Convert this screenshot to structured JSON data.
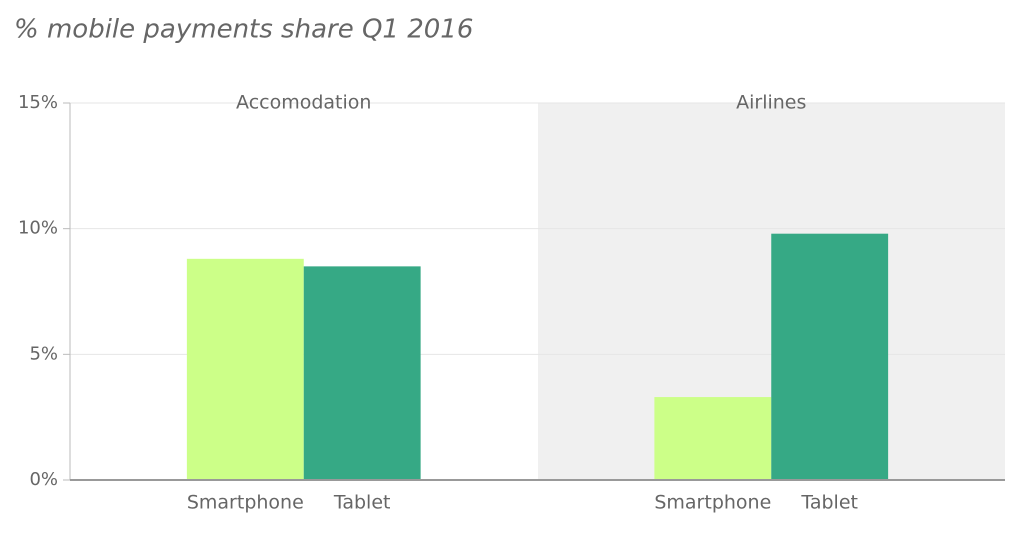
{
  "title": "% mobile payments share Q1 2016",
  "chart_data": [
    {
      "type": "bar",
      "title": "Accomodation",
      "categories": [
        "Smartphone",
        "Tablet"
      ],
      "values": [
        8.8,
        8.5
      ],
      "colors": [
        "#ccff88",
        "#36a985"
      ],
      "ylim": [
        0,
        15
      ],
      "yticks": [
        {
          "value": 0,
          "label": "0%"
        },
        {
          "value": 5,
          "label": "5%"
        },
        {
          "value": 10,
          "label": "10%"
        },
        {
          "value": 15,
          "label": "15%"
        }
      ],
      "grid": true
    },
    {
      "type": "bar",
      "title": "Airlines",
      "categories": [
        "Smartphone",
        "Tablet"
      ],
      "values": [
        3.3,
        9.8
      ],
      "colors": [
        "#ccff88",
        "#36a985"
      ],
      "ylim": [
        0,
        15
      ],
      "grid": true
    }
  ]
}
